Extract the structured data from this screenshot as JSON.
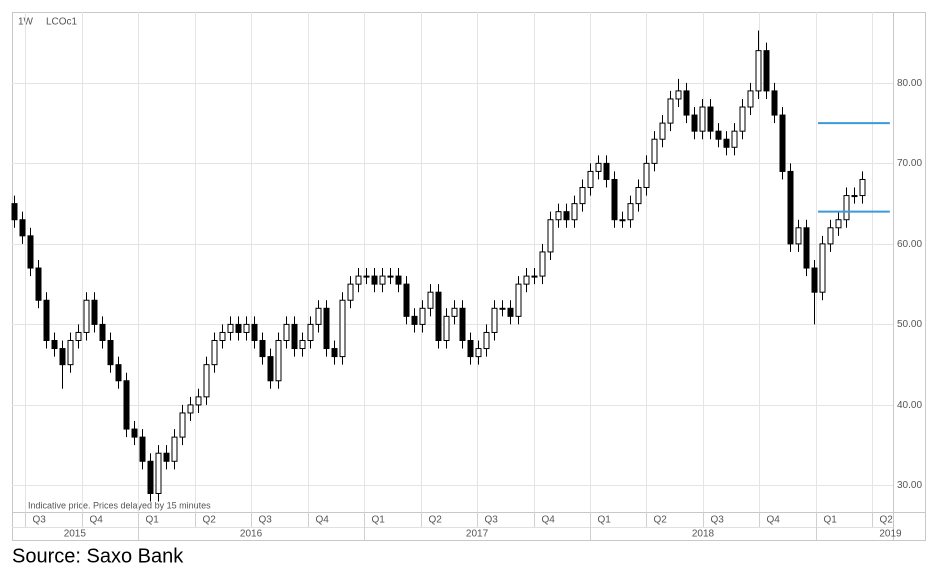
{
  "chart_data": {
    "type": "candlestick",
    "interval": "1W",
    "symbol": "LCOc1",
    "footnote": "Indicative price. Prices delayed by 15 minutes",
    "source": "Source: Saxo Bank",
    "up_color": "#ffffff",
    "down_color": "#000000",
    "outline_color": "#000000",
    "grid": true,
    "x": [
      2015.451,
      2015.486,
      2015.522,
      2015.557,
      2015.593,
      2015.628,
      2015.663,
      2015.699,
      2015.734,
      2015.77,
      2015.805,
      2015.84,
      2015.876,
      2015.911,
      2015.947,
      2015.982,
      2016.017,
      2016.053,
      2016.088,
      2016.124,
      2016.159,
      2016.194,
      2016.23,
      2016.265,
      2016.301,
      2016.336,
      2016.371,
      2016.407,
      2016.442,
      2016.478,
      2016.513,
      2016.548,
      2016.584,
      2016.619,
      2016.655,
      2016.69,
      2016.725,
      2016.761,
      2016.796,
      2016.832,
      2016.867,
      2016.902,
      2016.938,
      2016.973,
      2017.009,
      2017.044,
      2017.079,
      2017.115,
      2017.15,
      2017.186,
      2017.221,
      2017.256,
      2017.292,
      2017.327,
      2017.363,
      2017.398,
      2017.433,
      2017.469,
      2017.504,
      2017.54,
      2017.575,
      2017.61,
      2017.646,
      2017.681,
      2017.717,
      2017.752,
      2017.787,
      2017.823,
      2017.858,
      2017.894,
      2017.929,
      2017.964,
      2018.0,
      2018.035,
      2018.071,
      2018.106,
      2018.141,
      2018.177,
      2018.212,
      2018.248,
      2018.283,
      2018.318,
      2018.354,
      2018.389,
      2018.425,
      2018.46,
      2018.495,
      2018.531,
      2018.566,
      2018.602,
      2018.637,
      2018.672,
      2018.708,
      2018.743,
      2018.779,
      2018.814,
      2018.849,
      2018.885,
      2018.92,
      2018.956,
      2018.991,
      2019.026,
      2019.062,
      2019.097,
      2019.133,
      2019.168,
      2019.204
    ],
    "open": [
      65,
      63,
      61,
      57,
      53,
      48,
      47,
      45,
      48,
      49,
      53,
      50,
      48,
      45,
      43,
      37,
      36,
      33,
      29,
      34,
      33,
      36,
      39,
      40,
      41,
      45,
      48,
      49,
      50,
      49,
      50,
      48,
      46,
      43,
      48,
      50,
      47,
      48,
      50,
      52,
      47,
      46,
      53,
      55,
      56,
      56,
      55,
      56,
      56,
      55,
      51,
      50,
      52,
      54,
      48,
      51,
      52,
      48,
      46,
      47,
      49,
      52,
      52,
      51,
      55,
      56,
      56,
      59,
      63,
      64,
      63,
      65,
      67,
      69,
      70,
      68,
      63,
      63,
      65,
      67,
      70,
      73,
      75,
      78,
      79,
      76,
      74,
      77,
      74,
      73,
      72,
      74,
      77,
      79,
      84,
      79,
      76,
      69,
      60,
      62,
      57,
      54,
      60,
      62,
      63,
      66,
      66
    ],
    "high": [
      66,
      64,
      62,
      58,
      54,
      49,
      48,
      49,
      50,
      54,
      54,
      51,
      49,
      46,
      44,
      38,
      37,
      34,
      35,
      35,
      37,
      40,
      41,
      42,
      46,
      49,
      50,
      51,
      51,
      51,
      51,
      49,
      47,
      49,
      51,
      51,
      49,
      51,
      53,
      53,
      48,
      54,
      56,
      57,
      57,
      57,
      57,
      57,
      57,
      56,
      52,
      53,
      55,
      55,
      52,
      53,
      53,
      49,
      48,
      50,
      53,
      53,
      53,
      56,
      57,
      57,
      60,
      64,
      65,
      65,
      66,
      68,
      70,
      71,
      71,
      69,
      64,
      66,
      68,
      71,
      74,
      76,
      79,
      80.5,
      80,
      77,
      78,
      78,
      75,
      74,
      75,
      78,
      80,
      86.5,
      85,
      80,
      77,
      70,
      63,
      63,
      58,
      61,
      63,
      64,
      67,
      67,
      69
    ],
    "low": [
      62,
      60,
      56,
      52,
      47,
      46,
      42,
      44,
      47,
      48,
      49,
      47,
      44,
      42,
      36,
      35,
      32,
      28,
      28,
      32,
      32,
      35,
      38,
      39,
      40,
      44,
      47,
      48,
      48,
      48,
      47,
      45,
      42,
      42,
      47,
      46,
      46,
      47,
      49,
      46,
      45,
      45,
      52,
      54,
      55,
      54,
      54,
      55,
      54,
      50,
      49,
      49,
      51,
      47,
      47,
      50,
      47,
      45,
      45,
      46,
      48,
      51,
      50,
      50,
      54,
      55,
      55,
      58,
      62,
      62,
      62,
      64,
      66,
      68,
      67,
      62,
      62,
      62,
      64,
      66,
      69,
      72,
      74,
      77,
      75,
      73,
      73,
      73,
      72,
      71,
      71,
      73,
      76,
      78,
      78,
      75,
      68,
      59,
      59,
      56,
      50,
      53,
      59,
      61,
      62,
      65,
      65
    ],
    "close": [
      63,
      61,
      57,
      53,
      48,
      47,
      45,
      48,
      49,
      53,
      50,
      48,
      45,
      43,
      37,
      36,
      33,
      29,
      34,
      33,
      36,
      39,
      40,
      41,
      45,
      48,
      49,
      50,
      49,
      50,
      48,
      46,
      43,
      48,
      50,
      47,
      48,
      50,
      52,
      47,
      46,
      53,
      55,
      56,
      56,
      55,
      56,
      56,
      55,
      51,
      50,
      52,
      54,
      48,
      51,
      52,
      48,
      46,
      47,
      49,
      52,
      52,
      51,
      55,
      56,
      56,
      59,
      63,
      64,
      63,
      65,
      67,
      69,
      70,
      68,
      63,
      63,
      65,
      67,
      70,
      73,
      75,
      78,
      79,
      76,
      74,
      77,
      74,
      73,
      72,
      74,
      77,
      79,
      84,
      79,
      76,
      69,
      60,
      62,
      57,
      54,
      60,
      62,
      63,
      66,
      66,
      68
    ],
    "xlim": [
      2015.442,
      2019.341
    ],
    "ylim": [
      26.7,
      88.8
    ],
    "yticks": [
      {
        "value": 30,
        "label": "30.00"
      },
      {
        "value": 40,
        "label": "40.00"
      },
      {
        "value": 50,
        "label": "50.00"
      },
      {
        "value": 60,
        "label": "60.00"
      },
      {
        "value": 70,
        "label": "70.00"
      },
      {
        "value": 80,
        "label": "80.00"
      }
    ],
    "xticks": [
      {
        "value": 2015.5,
        "label": "Q3"
      },
      {
        "value": 2015.75,
        "label": "Q4"
      },
      {
        "value": 2016,
        "label": "Q1"
      },
      {
        "value": 2016.25,
        "label": "Q2"
      },
      {
        "value": 2016.5,
        "label": "Q3"
      },
      {
        "value": 2016.75,
        "label": "Q4"
      },
      {
        "value": 2017,
        "label": "Q1"
      },
      {
        "value": 2017.25,
        "label": "Q2"
      },
      {
        "value": 2017.5,
        "label": "Q3"
      },
      {
        "value": 2017.75,
        "label": "Q4"
      },
      {
        "value": 2018,
        "label": "Q1"
      },
      {
        "value": 2018.25,
        "label": "Q2"
      },
      {
        "value": 2018.5,
        "label": "Q3"
      },
      {
        "value": 2018.75,
        "label": "Q4"
      },
      {
        "value": 2019,
        "label": "Q1"
      },
      {
        "value": 2019.25,
        "label": "Q2"
      }
    ],
    "year_ticks": [
      {
        "value": 2015.72,
        "label": "2015"
      },
      {
        "value": 2016.5,
        "label": "2016"
      },
      {
        "value": 2017.5,
        "label": "2017"
      },
      {
        "value": 2018.5,
        "label": "2018"
      },
      {
        "value": 2019.33,
        "label": "2019"
      }
    ],
    "hlines": [
      {
        "y": 75,
        "x0": 2019.009,
        "x1": 2019.327
      },
      {
        "y": 64,
        "x0": 2019.009,
        "x1": 2019.327
      }
    ],
    "hline_color": "#3a9ad9"
  }
}
